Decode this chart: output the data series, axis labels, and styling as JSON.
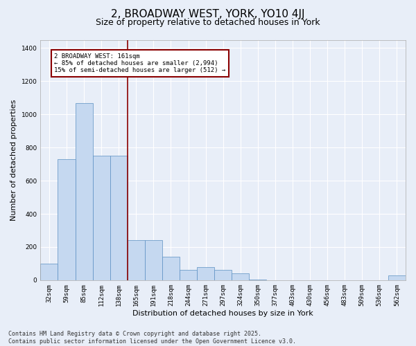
{
  "title": "2, BROADWAY WEST, YORK, YO10 4JJ",
  "subtitle": "Size of property relative to detached houses in York",
  "xlabel": "Distribution of detached houses by size in York",
  "ylabel": "Number of detached properties",
  "categories": [
    "32sqm",
    "59sqm",
    "85sqm",
    "112sqm",
    "138sqm",
    "165sqm",
    "191sqm",
    "218sqm",
    "244sqm",
    "271sqm",
    "297sqm",
    "324sqm",
    "350sqm",
    "377sqm",
    "403sqm",
    "430sqm",
    "456sqm",
    "483sqm",
    "509sqm",
    "536sqm",
    "562sqm"
  ],
  "bar_heights": [
    100,
    730,
    1070,
    750,
    750,
    240,
    240,
    140,
    60,
    80,
    60,
    40,
    5,
    0,
    0,
    0,
    0,
    0,
    0,
    0,
    30
  ],
  "bar_color": "#c5d8f0",
  "bar_edge_color": "#5a8fc2",
  "vline_x_index": 4.5,
  "vline_color": "#8b0000",
  "annotation_text": "2 BROADWAY WEST: 161sqm\n← 85% of detached houses are smaller (2,994)\n15% of semi-detached houses are larger (512) →",
  "annotation_box_color": "#8b0000",
  "annotation_bg": "#ffffff",
  "ylim": [
    0,
    1450
  ],
  "yticks": [
    0,
    200,
    400,
    600,
    800,
    1000,
    1200,
    1400
  ],
  "footer": "Contains HM Land Registry data © Crown copyright and database right 2025.\nContains public sector information licensed under the Open Government Licence v3.0.",
  "bg_color": "#e8eef8",
  "grid_color": "#ffffff",
  "title_fontsize": 11,
  "subtitle_fontsize": 9,
  "axis_label_fontsize": 8,
  "tick_fontsize": 6.5,
  "footer_fontsize": 6,
  "annotation_fontsize": 6.5
}
